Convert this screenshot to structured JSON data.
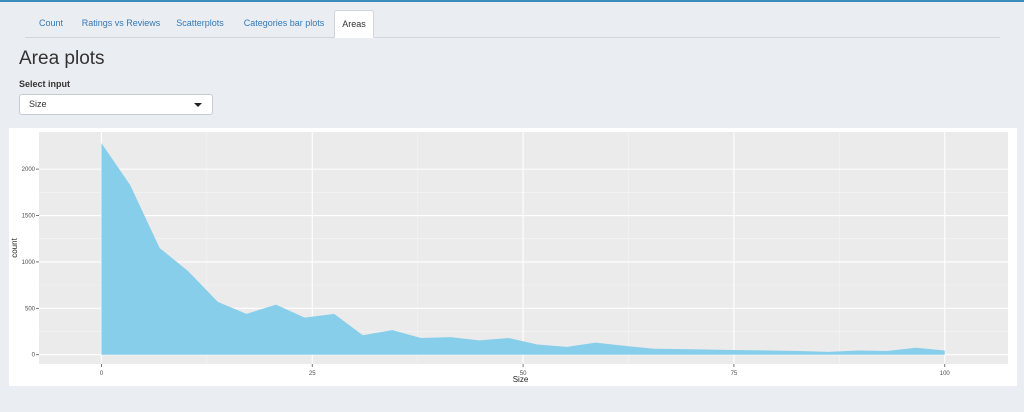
{
  "tabs": [
    {
      "label": "Count"
    },
    {
      "label": "Ratings vs Reviews"
    },
    {
      "label": "Scatterplots"
    },
    {
      "label": "Categories bar plots"
    },
    {
      "label": "Areas"
    }
  ],
  "page_title": "Area plots",
  "select": {
    "label": "Select input",
    "value": "Size"
  },
  "colors": {
    "area": "#87ceeb",
    "panel_bg": "#ebebeb",
    "accent": "#3c8dbc"
  },
  "chart_data": {
    "type": "area",
    "xlabel": "Size",
    "ylabel": "count",
    "xlim": [
      -7.4,
      107.5
    ],
    "ylim": [
      -100,
      2400
    ],
    "x_ticks": [
      0,
      25,
      50,
      75,
      100
    ],
    "y_ticks": [
      0,
      500,
      1000,
      1500,
      2000
    ],
    "grid": true,
    "series": [
      {
        "x": [
          0,
          3.4,
          6.9,
          10.3,
          13.8,
          17.2,
          20.7,
          24.1,
          27.6,
          31.0,
          34.5,
          37.9,
          41.4,
          44.8,
          48.3,
          51.7,
          55.2,
          58.6,
          62.1,
          65.5,
          69.0,
          72.4,
          75.9,
          79.3,
          82.8,
          86.2,
          89.7,
          93.1,
          96.6,
          100
        ],
        "values": [
          2280,
          1830,
          1150,
          900,
          570,
          440,
          540,
          400,
          440,
          210,
          265,
          180,
          190,
          155,
          180,
          110,
          85,
          130,
          95,
          65,
          60,
          55,
          50,
          45,
          40,
          30,
          45,
          40,
          75,
          45
        ]
      }
    ]
  }
}
